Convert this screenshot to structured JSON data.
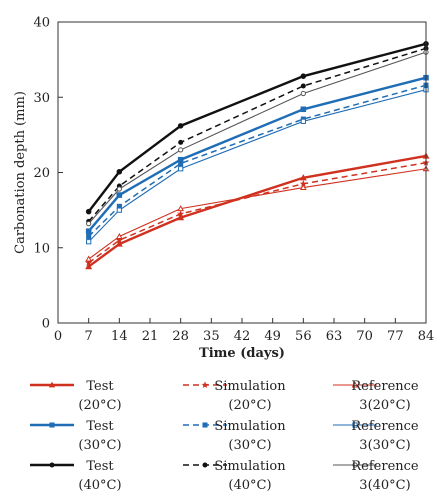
{
  "chart_data": {
    "type": "line",
    "xlabel": "Time (days)",
    "ylabel": "Carbonation depth (mm)",
    "xlim": [
      0,
      84
    ],
    "ylim": [
      0,
      40
    ],
    "x_ticks": [
      "0",
      "7",
      "14",
      "21",
      "28",
      "35",
      "42",
      "49",
      "56",
      "63",
      "70",
      "77",
      "84"
    ],
    "y_ticks": [
      "0",
      "10",
      "20",
      "30",
      "40"
    ],
    "grid": false,
    "legend_position": "bottom",
    "x": [
      7,
      14,
      28,
      56,
      84
    ],
    "series": [
      {
        "name": "Test (20°C)",
        "legend_lines": [
          "Test",
          "(20°C)"
        ],
        "color": "#d0311f",
        "line": "solid",
        "marker": "triangle-filled",
        "values": [
          7.5,
          10.5,
          14.0,
          19.3,
          22.2
        ]
      },
      {
        "name": "Simulation (20°C)",
        "legend_lines": [
          "Simulation",
          "(20°C)"
        ],
        "color": "#d0311f",
        "line": "dashed",
        "marker": "star",
        "values": [
          8.0,
          11.0,
          14.5,
          18.5,
          21.3
        ]
      },
      {
        "name": "Reference 3(20°C)",
        "legend_lines": [
          "Reference",
          "3(20°C)"
        ],
        "color": "#d0311f",
        "line": "solid-thin",
        "marker": "triangle-open",
        "values": [
          8.5,
          11.5,
          15.2,
          18.0,
          20.5
        ]
      },
      {
        "name": "Test (30°C)",
        "legend_lines": [
          "Test",
          "(30°C)"
        ],
        "color": "#1f6db5",
        "line": "solid",
        "marker": "square-filled",
        "values": [
          12.2,
          17.0,
          21.7,
          28.4,
          32.6
        ]
      },
      {
        "name": "Simulation (30°C)",
        "legend_lines": [
          "Simulation",
          "(30°C)"
        ],
        "color": "#1f6db5",
        "line": "dashed",
        "marker": "square-filled",
        "values": [
          11.5,
          15.5,
          21.2,
          27.1,
          31.6
        ]
      },
      {
        "name": "Reference 3(30°C)",
        "legend_lines": [
          "Reference",
          "3(30°C)"
        ],
        "color": "#1f6db5",
        "line": "solid-thin",
        "marker": "square-open",
        "values": [
          10.8,
          15.0,
          20.5,
          26.8,
          31.0
        ]
      },
      {
        "name": "Test (40°C)",
        "legend_lines": [
          "Test",
          "(40°C)"
        ],
        "color": "#111111",
        "line": "solid",
        "marker": "circle-filled",
        "values": [
          14.8,
          20.1,
          26.2,
          32.8,
          37.1
        ]
      },
      {
        "name": "Simulation (40°C)",
        "legend_lines": [
          "Simulation",
          "(40°C)"
        ],
        "color": "#111111",
        "line": "dashed",
        "marker": "circle-filled",
        "values": [
          13.5,
          18.2,
          24.0,
          31.5,
          36.5
        ]
      },
      {
        "name": "Reference 3(40°C)",
        "legend_lines": [
          "Reference",
          "3(40°C)"
        ],
        "color": "#555555",
        "line": "solid-thin",
        "marker": "circle-open",
        "values": [
          13.2,
          17.8,
          23.0,
          30.5,
          36.0
        ]
      }
    ]
  }
}
